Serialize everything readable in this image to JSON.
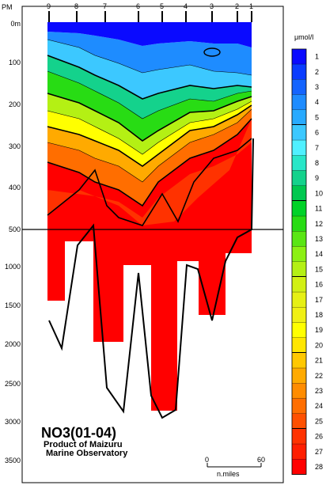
{
  "chart_data": {
    "type": "heatmap",
    "title": "NO3(01-04)",
    "credit_line1": "Product of Maizuru",
    "credit_line2": "Marine Observatory",
    "unit_label": "μmol/l",
    "x_axis_prefix": "PM",
    "stations": [
      "9",
      "8",
      "7",
      "6",
      "5",
      "4",
      "3",
      "2",
      "1"
    ],
    "y_ticks_upper": [
      "0m",
      "100",
      "200",
      "300",
      "400",
      "500"
    ],
    "y_ticks_lower": [
      "1000",
      "1500",
      "2000",
      "2500",
      "3000",
      "3500"
    ],
    "y_upper_range": [
      0,
      500
    ],
    "y_lower_range": [
      500,
      3800
    ],
    "scale_bar": {
      "start": "0",
      "end": "60",
      "unit": "n.miles"
    },
    "color_levels": [
      {
        "value": "1",
        "color": "#0a0aff"
      },
      {
        "value": "2",
        "color": "#0a3cff"
      },
      {
        "value": "3",
        "color": "#1464ff"
      },
      {
        "value": "4",
        "color": "#1e8cff"
      },
      {
        "value": "5",
        "color": "#28aaff"
      },
      {
        "value": "6",
        "color": "#3cc8ff"
      },
      {
        "value": "7",
        "color": "#50f0ff"
      },
      {
        "value": "8",
        "color": "#28e6c8"
      },
      {
        "value": "9",
        "color": "#14d28c"
      },
      {
        "value": "10",
        "color": "#00c850"
      },
      {
        "value": "11",
        "color": "#00d228"
      },
      {
        "value": "12",
        "color": "#28dc14"
      },
      {
        "value": "13",
        "color": "#5ae614"
      },
      {
        "value": "14",
        "color": "#8cf014"
      },
      {
        "value": "15",
        "color": "#b4f014"
      },
      {
        "value": "16",
        "color": "#d2f014"
      },
      {
        "value": "17",
        "color": "#e6f014"
      },
      {
        "value": "18",
        "color": "#f0f014"
      },
      {
        "value": "19",
        "color": "#ffff00"
      },
      {
        "value": "20",
        "color": "#ffe600"
      },
      {
        "value": "21",
        "color": "#ffc800"
      },
      {
        "value": "22",
        "color": "#ffaa00"
      },
      {
        "value": "23",
        "color": "#ff8c00"
      },
      {
        "value": "24",
        "color": "#ff6e00"
      },
      {
        "value": "25",
        "color": "#ff5000"
      },
      {
        "value": "26",
        "color": "#ff3200"
      },
      {
        "value": "27",
        "color": "#ff1e00"
      },
      {
        "value": "28",
        "color": "#ff0000"
      }
    ]
  }
}
